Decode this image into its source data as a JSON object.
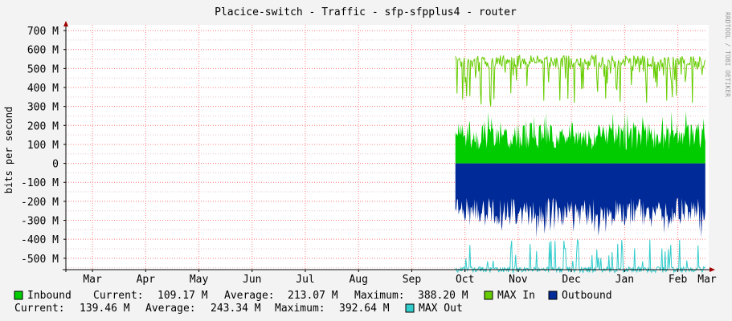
{
  "chart_data": {
    "type": "area",
    "title": "Placice-switch - Traffic - sfp-sfpplus4 - router",
    "ylabel": "bits per second",
    "watermark": "RRDTOOL / TOBI OETIKER",
    "ylim": [
      -560,
      730
    ],
    "y_ticks": [
      {
        "value": 700,
        "label": "700 M"
      },
      {
        "value": 600,
        "label": "600 M"
      },
      {
        "value": 500,
        "label": "500 M"
      },
      {
        "value": 400,
        "label": "400 M"
      },
      {
        "value": 300,
        "label": "300 M"
      },
      {
        "value": 200,
        "label": "200 M"
      },
      {
        "value": 100,
        "label": "100 M"
      },
      {
        "value": 0,
        "label": "0"
      },
      {
        "value": -100,
        "label": "-100 M"
      },
      {
        "value": -200,
        "label": "-200 M"
      },
      {
        "value": -300,
        "label": "-300 M"
      },
      {
        "value": -400,
        "label": "-400 M"
      },
      {
        "value": -500,
        "label": "-500 M"
      }
    ],
    "x_range_months": [
      0,
      12.05
    ],
    "x_ticks": [
      {
        "value": 0.5,
        "label": "Mar"
      },
      {
        "value": 1.5,
        "label": "Apr"
      },
      {
        "value": 2.5,
        "label": "May"
      },
      {
        "value": 3.5,
        "label": "Jun"
      },
      {
        "value": 4.5,
        "label": "Jul"
      },
      {
        "value": 5.5,
        "label": "Aug"
      },
      {
        "value": 6.5,
        "label": "Sep"
      },
      {
        "value": 7.5,
        "label": "Oct"
      },
      {
        "value": 8.5,
        "label": "Nov"
      },
      {
        "value": 9.5,
        "label": "Dec"
      },
      {
        "value": 10.5,
        "label": "Jan"
      },
      {
        "value": 11.5,
        "label": "Feb"
      },
      {
        "value": 12.05,
        "label": "Mar"
      }
    ],
    "x_grid": [
      0.5,
      1.5,
      2.5,
      3.5,
      4.5,
      5.5,
      6.5,
      7.5,
      8.5,
      9.5,
      10.5,
      11.5
    ],
    "data_start_month": 7.32,
    "data_end_month": 12.02,
    "colors": {
      "inbound": "#00cc00",
      "max_in": "#66cc00",
      "outbound": "#002a97",
      "max_out": "#33cccc",
      "grid": "#ff8080",
      "axis": "#000000",
      "background": "#f3f3f3",
      "canvas": "#ffffff"
    },
    "series": [
      {
        "name": "Inbound",
        "approx_range": [
          60,
          290
        ],
        "current": "109.17 M",
        "average": "213.07 M",
        "maximum": "388.20 M"
      },
      {
        "name": "MAX In",
        "approx_range": [
          290,
          570
        ]
      },
      {
        "name": "Outbound",
        "approx_range": [
          -390,
          -180
        ],
        "current": "139.46 M",
        "average": "243.34 M",
        "maximum": "392.64 M"
      },
      {
        "name": "MAX Out",
        "approx_range": [
          -570,
          -390
        ]
      }
    ]
  },
  "legend": {
    "inbound_label": "Inbound",
    "current_label": "Current:",
    "average_label": "Average:",
    "maximum_label": "Maximum:",
    "in_current": "109.17 M",
    "in_average": "213.07 M",
    "in_maximum": "388.20 M",
    "max_in_label": "MAX In",
    "outbound_label": "Outbound",
    "out_current": "139.46 M",
    "out_average": "243.34 M",
    "out_maximum": "392.64 M",
    "max_out_label": "MAX Out"
  }
}
